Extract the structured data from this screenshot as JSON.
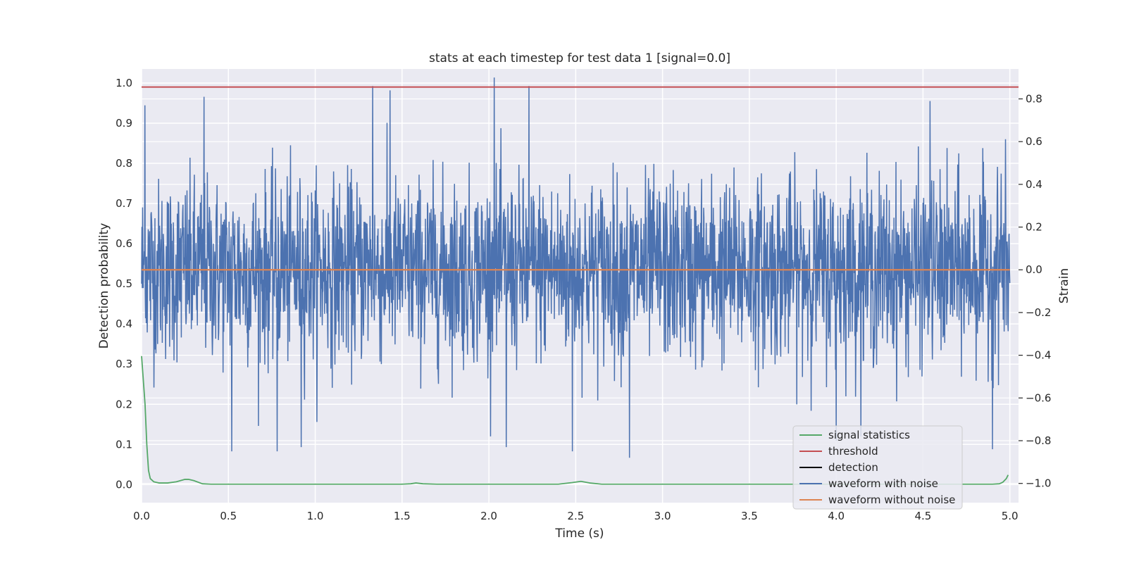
{
  "chart_data": {
    "type": "line",
    "title": "stats at each timestep for test data 1 [signal=0.0]",
    "xlabel": "Time (s)",
    "ylabel": "Detection probability",
    "y2label": "Strain",
    "xlim": [
      0.0,
      5.05
    ],
    "ylim": [
      -0.045,
      1.035
    ],
    "y2lim": [
      -1.09,
      0.94
    ],
    "xticks": [
      0.0,
      0.5,
      1.0,
      1.5,
      2.0,
      2.5,
      3.0,
      3.5,
      4.0,
      4.5,
      5.0
    ],
    "xtick_labels": [
      "0.0",
      "0.5",
      "1.0",
      "1.5",
      "2.0",
      "2.5",
      "3.0",
      "3.5",
      "4.0",
      "4.5",
      "5.0"
    ],
    "yticks": [
      0.0,
      0.1,
      0.2,
      0.3,
      0.4,
      0.5,
      0.6,
      0.7,
      0.8,
      0.9,
      1.0
    ],
    "ytick_labels": [
      "0.0",
      "0.1",
      "0.2",
      "0.3",
      "0.4",
      "0.5",
      "0.6",
      "0.7",
      "0.8",
      "0.9",
      "1.0"
    ],
    "y2ticks": [
      -1.0,
      -0.8,
      -0.6,
      -0.4,
      -0.2,
      0.0,
      0.2,
      0.4,
      0.6,
      0.8
    ],
    "y2tick_labels": [
      "−1.0",
      "−0.8",
      "−0.6",
      "−0.4",
      "−0.2",
      "0.0",
      "0.2",
      "0.4",
      "0.6",
      "0.8"
    ],
    "grid": true,
    "legend_position": "lower-right",
    "legend": [
      {
        "label": "signal statistics",
        "color": "#55a868"
      },
      {
        "label": "threshold",
        "color": "#c44e52"
      },
      {
        "label": "detection",
        "color": "#000000"
      },
      {
        "label": "waveform with noise",
        "color": "#4c72b0"
      },
      {
        "label": "waveform without noise",
        "color": "#dd8452"
      }
    ],
    "series": [
      {
        "name": "signal statistics",
        "color": "#55a868",
        "axis": "left",
        "x": [
          0.0,
          0.02,
          0.03,
          0.04,
          0.05,
          0.07,
          0.1,
          0.15,
          0.2,
          0.25,
          0.27,
          0.3,
          0.35,
          0.4,
          1.0,
          1.5,
          1.55,
          1.58,
          1.62,
          1.7,
          2.0,
          2.4,
          2.48,
          2.53,
          2.58,
          2.65,
          3.0,
          3.5,
          4.0,
          4.5,
          4.9,
          4.94,
          4.96,
          4.98,
          4.99
        ],
        "y": [
          0.32,
          0.2,
          0.1,
          0.035,
          0.015,
          0.007,
          0.004,
          0.004,
          0.007,
          0.013,
          0.013,
          0.01,
          0.002,
          0.001,
          0.001,
          0.001,
          0.002,
          0.004,
          0.002,
          0.001,
          0.001,
          0.001,
          0.005,
          0.008,
          0.004,
          0.001,
          0.001,
          0.001,
          0.001,
          0.001,
          0.001,
          0.002,
          0.006,
          0.015,
          0.024
        ]
      },
      {
        "name": "threshold",
        "color": "#c44e52",
        "axis": "left",
        "x": [
          0.0,
          5.05
        ],
        "y": [
          0.99,
          0.99
        ]
      },
      {
        "name": "waveform with noise",
        "color": "#4c72b0",
        "axis": "right",
        "x_range": [
          0.0,
          5.0
        ],
        "approx_std": 0.2,
        "notable_peaks": {
          "x": [
            0.02,
            0.36,
            0.52,
            0.78,
            0.92,
            1.33,
            1.43,
            2.03,
            2.1,
            2.23,
            2.48,
            2.81,
            4.0,
            4.54,
            4.9,
            4.95
          ],
          "y": [
            0.77,
            0.81,
            -0.85,
            -0.85,
            -0.83,
            0.86,
            0.84,
            0.9,
            -0.83,
            0.86,
            -0.85,
            -0.88,
            -0.8,
            0.79,
            -0.84,
            0.45
          ]
        }
      },
      {
        "name": "waveform without noise",
        "color": "#dd8452",
        "axis": "right",
        "x": [
          0.0,
          5.0
        ],
        "y": [
          0.0,
          0.0
        ]
      }
    ]
  }
}
